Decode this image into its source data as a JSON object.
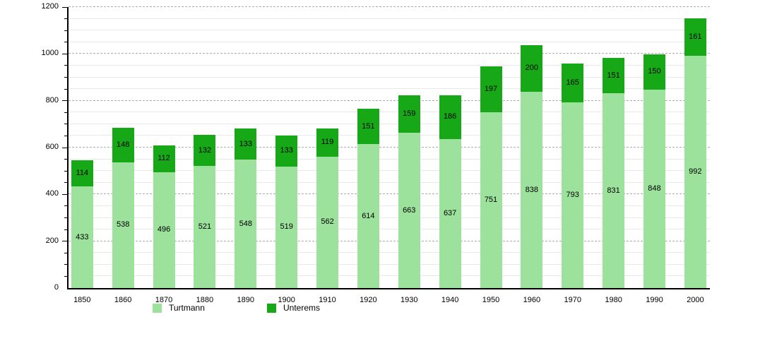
{
  "chart_data": {
    "type": "bar",
    "stacked": true,
    "title": "",
    "xlabel": "",
    "ylabel": "",
    "categories": [
      "1850",
      "1860",
      "1870",
      "1880",
      "1890",
      "1900",
      "1910",
      "1920",
      "1930",
      "1940",
      "1950",
      "1960",
      "1970",
      "1980",
      "1990",
      "2000"
    ],
    "series": [
      {
        "name": "Turtmann",
        "color": "#9ce19c",
        "values": [
          433,
          538,
          496,
          521,
          548,
          519,
          562,
          614,
          663,
          637,
          751,
          838,
          793,
          831,
          848,
          992
        ]
      },
      {
        "name": "Unterems",
        "color": "#16a816",
        "values": [
          114,
          148,
          112,
          132,
          133,
          133,
          119,
          151,
          159,
          186,
          197,
          200,
          165,
          151,
          150,
          161
        ]
      }
    ],
    "ylim": [
      0,
      1200
    ],
    "y_ticks": [
      0,
      200,
      400,
      600,
      800,
      1000,
      1200
    ],
    "y_minor_step": 50,
    "grid": "on",
    "legend_position": "bottom",
    "axis_color": "#000000",
    "grid_minor_color": "#e8e8e8",
    "grid_major_color": "#adadad",
    "background_color": "#ffffff"
  }
}
